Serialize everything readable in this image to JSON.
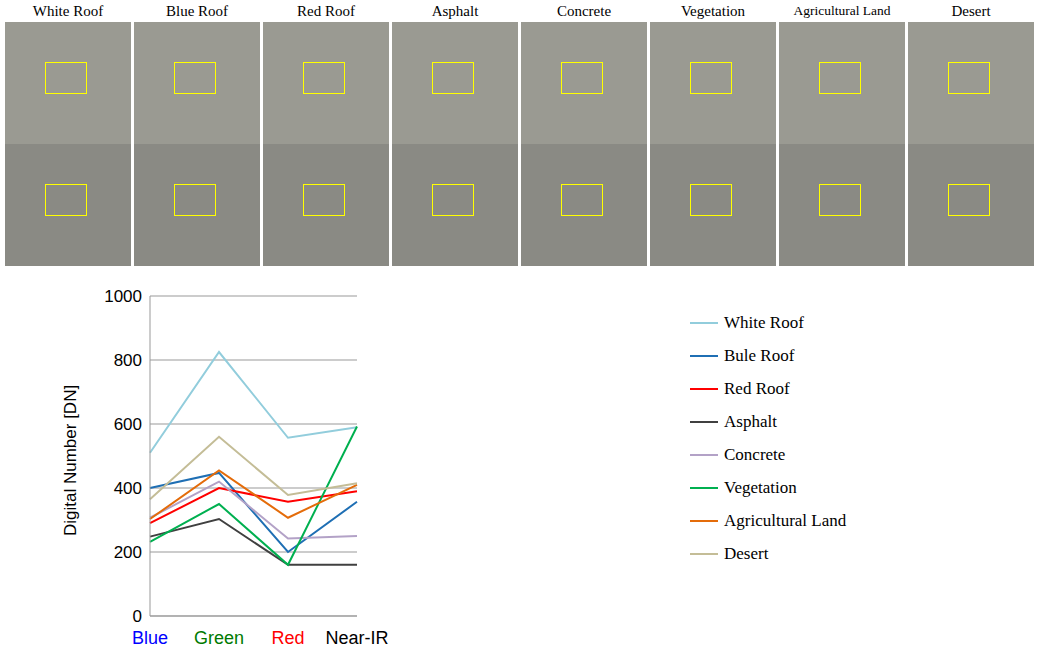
{
  "images": {
    "labels": [
      "White Roof",
      "Blue Roof",
      "Red Roof",
      "Asphalt",
      "Concrete",
      "Vegetation",
      "Agricultural Land",
      "Desert"
    ]
  },
  "chart_data": {
    "type": "line",
    "y_label": "Digital Number [DN]",
    "categories": [
      "Blue",
      "Green",
      "Red",
      "Near-IR"
    ],
    "ylim": [
      0,
      1000
    ],
    "yticks": [
      0,
      200,
      400,
      600,
      800,
      1000
    ],
    "grid": true,
    "legend": "right",
    "series": [
      {
        "name": "White Roof",
        "color": "#92cddc",
        "values": [
          510,
          825,
          557,
          590
        ]
      },
      {
        "name": "Bule Roof",
        "color": "#1f6fb4",
        "values": [
          400,
          447,
          200,
          357
        ]
      },
      {
        "name": "Red Roof",
        "color": "#ff0000",
        "values": [
          290,
          400,
          357,
          390
        ]
      },
      {
        "name": "Asphalt",
        "color": "#404040",
        "values": [
          248,
          303,
          160,
          160
        ]
      },
      {
        "name": "Concrete",
        "color": "#b3a2c7",
        "values": [
          307,
          420,
          242,
          250
        ]
      },
      {
        "name": "Vegetation",
        "color": "#00b050",
        "values": [
          232,
          350,
          160,
          592
        ]
      },
      {
        "name": "Agricultural Land",
        "color": "#e46c0a",
        "values": [
          303,
          455,
          307,
          410
        ]
      },
      {
        "name": "Desert",
        "color": "#c4bd97",
        "values": [
          365,
          560,
          378,
          415
        ]
      }
    ]
  }
}
